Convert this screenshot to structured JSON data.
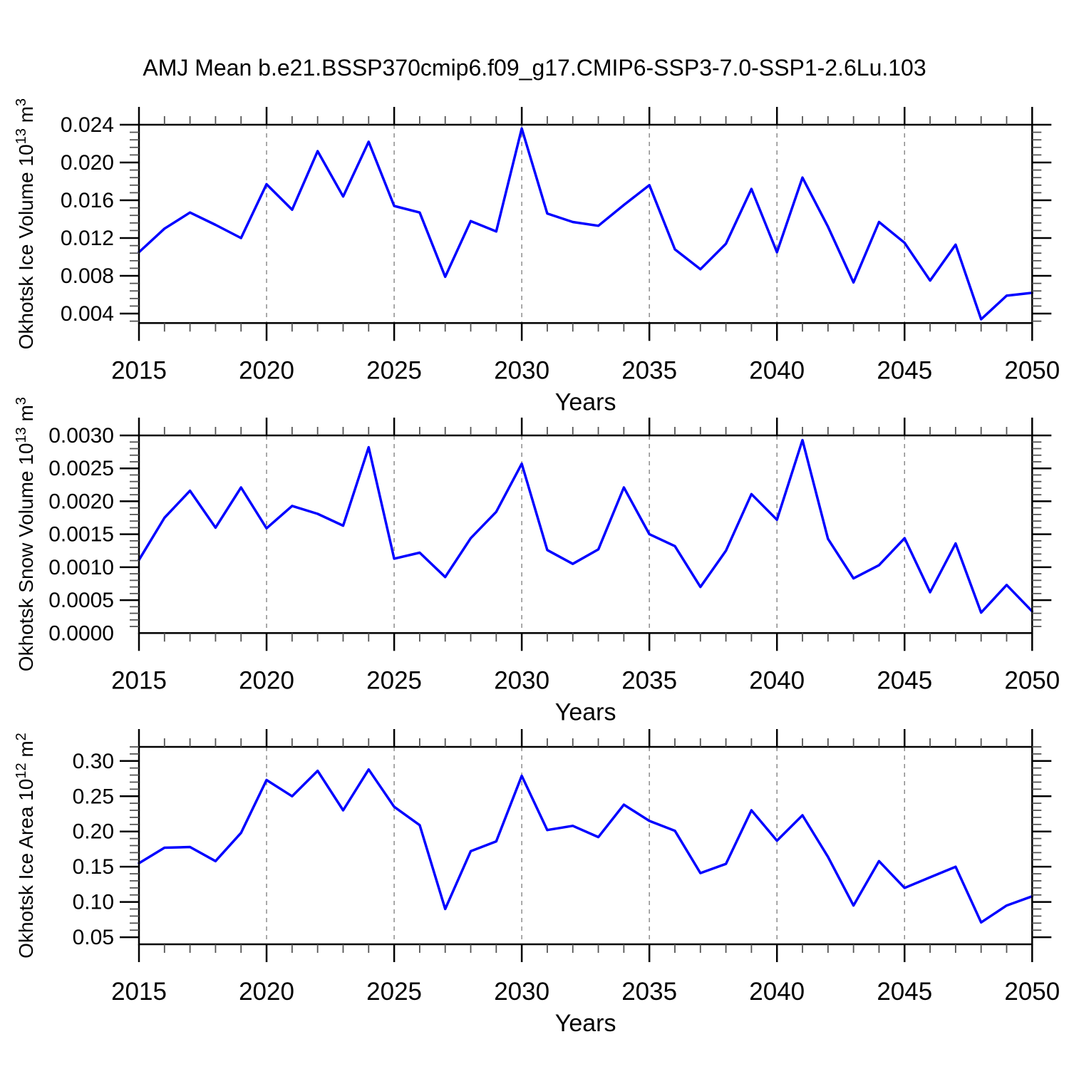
{
  "title": "AMJ Mean b.e21.BSSP370cmip6.f09_g17.CMIP6-SSP3-7.0-SSP1-2.6Lu.103",
  "style": {
    "line_color": "#0000ff",
    "gridline_color": "#8c8c8c",
    "axis_color": "#000000",
    "background": "#ffffff"
  },
  "x_axis": {
    "label": "Years",
    "min": 2015,
    "max": 2050,
    "tick_labels": [
      "2015",
      "2020",
      "2025",
      "2030",
      "2035",
      "2040",
      "2045",
      "2050"
    ],
    "tick_values": [
      2015,
      2020,
      2025,
      2030,
      2035,
      2040,
      2045,
      2050
    ],
    "minor_step": 1,
    "gridlines": [
      2020,
      2025,
      2030,
      2035,
      2040,
      2045
    ]
  },
  "chart_data": [
    {
      "id": "ice-volume",
      "type": "line",
      "ylabel": "Okhotsk Ice Volume 10^13 m^3",
      "ylabel_parts": [
        {
          "text": "Okhotsk Ice Volume 10"
        },
        {
          "text": "13",
          "sup": true
        },
        {
          "text": " m"
        },
        {
          "text": "3",
          "sup": true
        }
      ],
      "xlabel": "Years",
      "x": [
        2015,
        2016,
        2017,
        2018,
        2019,
        2020,
        2021,
        2022,
        2023,
        2024,
        2025,
        2026,
        2027,
        2028,
        2029,
        2030,
        2031,
        2032,
        2033,
        2034,
        2035,
        2036,
        2037,
        2038,
        2039,
        2040,
        2041,
        2042,
        2043,
        2044,
        2045,
        2046,
        2047,
        2048,
        2049,
        2050
      ],
      "values": [
        0.0105,
        0.013,
        0.0147,
        0.0134,
        0.012,
        0.0177,
        0.015,
        0.0212,
        0.0164,
        0.0222,
        0.0154,
        0.0147,
        0.0079,
        0.0138,
        0.0127,
        0.0236,
        0.0146,
        0.0137,
        0.0133,
        0.0155,
        0.0176,
        0.0108,
        0.0087,
        0.0114,
        0.0172,
        0.0105,
        0.0184,
        0.0132,
        0.0073,
        0.0137,
        0.0115,
        0.0075,
        0.0113,
        0.0034,
        0.0059,
        0.0062
      ],
      "ylim": [
        0.003,
        0.024
      ],
      "ytick_labels": [
        "0.004",
        "0.008",
        "0.012",
        "0.016",
        "0.020",
        "0.024"
      ],
      "ytick_values": [
        0.004,
        0.008,
        0.012,
        0.016,
        0.02,
        0.024
      ],
      "y_minor_step": 0.0008,
      "grid": "vertical-dashed"
    },
    {
      "id": "snow-volume",
      "type": "line",
      "ylabel": "Okhotsk Snow Volume 10^13 m^3",
      "ylabel_parts": [
        {
          "text": "Okhotsk Snow Volume 10"
        },
        {
          "text": "13",
          "sup": true
        },
        {
          "text": " m"
        },
        {
          "text": "3",
          "sup": true
        }
      ],
      "xlabel": "Years",
      "x": [
        2015,
        2016,
        2017,
        2018,
        2019,
        2020,
        2021,
        2022,
        2023,
        2024,
        2025,
        2026,
        2027,
        2028,
        2029,
        2030,
        2031,
        2032,
        2033,
        2034,
        2035,
        2036,
        2037,
        2038,
        2039,
        2040,
        2041,
        2042,
        2043,
        2044,
        2045,
        2046,
        2047,
        2048,
        2049,
        2050
      ],
      "values": [
        0.00111,
        0.00175,
        0.00216,
        0.0016,
        0.00221,
        0.00159,
        0.00193,
        0.00181,
        0.00163,
        0.00282,
        0.00113,
        0.00122,
        0.00085,
        0.00144,
        0.00184,
        0.00257,
        0.00126,
        0.00105,
        0.00127,
        0.00221,
        0.0015,
        0.00132,
        0.0007,
        0.00125,
        0.00211,
        0.00172,
        0.00293,
        0.00143,
        0.00083,
        0.00103,
        0.00144,
        0.00062,
        0.00136,
        0.00031,
        0.00073,
        0.00033
      ],
      "ylim": [
        0.0,
        0.003
      ],
      "ytick_labels": [
        "0.0000",
        "0.0005",
        "0.0010",
        "0.0015",
        "0.0020",
        "0.0025",
        "0.0030"
      ],
      "ytick_values": [
        0.0,
        0.0005,
        0.001,
        0.0015,
        0.002,
        0.0025,
        0.003
      ],
      "y_minor_step": 0.0001,
      "grid": "vertical-dashed"
    },
    {
      "id": "ice-area",
      "type": "line",
      "ylabel": "Okhotsk Ice Area 10^12 m^2",
      "ylabel_parts": [
        {
          "text": "Okhotsk Ice Area 10"
        },
        {
          "text": "12",
          "sup": true
        },
        {
          "text": " m"
        },
        {
          "text": "2",
          "sup": true
        }
      ],
      "xlabel": "Years",
      "x": [
        2015,
        2016,
        2017,
        2018,
        2019,
        2020,
        2021,
        2022,
        2023,
        2024,
        2025,
        2026,
        2027,
        2028,
        2029,
        2030,
        2031,
        2032,
        2033,
        2034,
        2035,
        2036,
        2037,
        2038,
        2039,
        2040,
        2041,
        2042,
        2043,
        2044,
        2045,
        2046,
        2047,
        2048,
        2049,
        2050
      ],
      "values": [
        0.155,
        0.177,
        0.178,
        0.158,
        0.198,
        0.273,
        0.25,
        0.286,
        0.23,
        0.288,
        0.235,
        0.209,
        0.09,
        0.172,
        0.186,
        0.279,
        0.202,
        0.208,
        0.192,
        0.238,
        0.215,
        0.201,
        0.141,
        0.154,
        0.23,
        0.187,
        0.223,
        0.164,
        0.095,
        0.158,
        0.12,
        0.135,
        0.15,
        0.071,
        0.095,
        0.108
      ],
      "ylim": [
        0.04,
        0.32
      ],
      "ytick_labels": [
        "0.05",
        "0.10",
        "0.15",
        "0.20",
        "0.25",
        "0.30"
      ],
      "ytick_values": [
        0.05,
        0.1,
        0.15,
        0.2,
        0.25,
        0.3
      ],
      "y_minor_step": 0.01,
      "grid": "vertical-dashed"
    }
  ]
}
